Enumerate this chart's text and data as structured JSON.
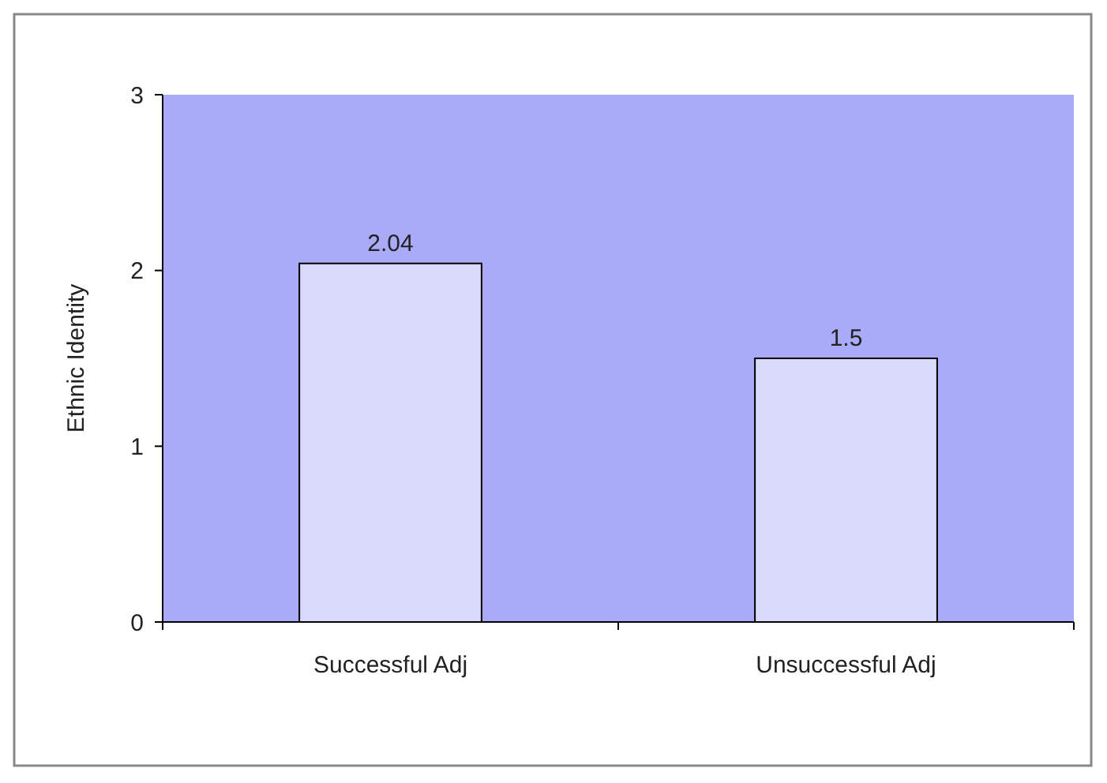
{
  "chart_data": {
    "type": "bar",
    "ylabel": "Ethnic Identity",
    "categories": [
      "Successful Adj",
      "Unsuccessful Adj"
    ],
    "values": [
      2.04,
      1.5
    ],
    "color": "#d9d9fc",
    "ylim": [
      0,
      3
    ],
    "yticks": [
      0,
      1,
      2,
      3
    ],
    "data_labels": true
  }
}
